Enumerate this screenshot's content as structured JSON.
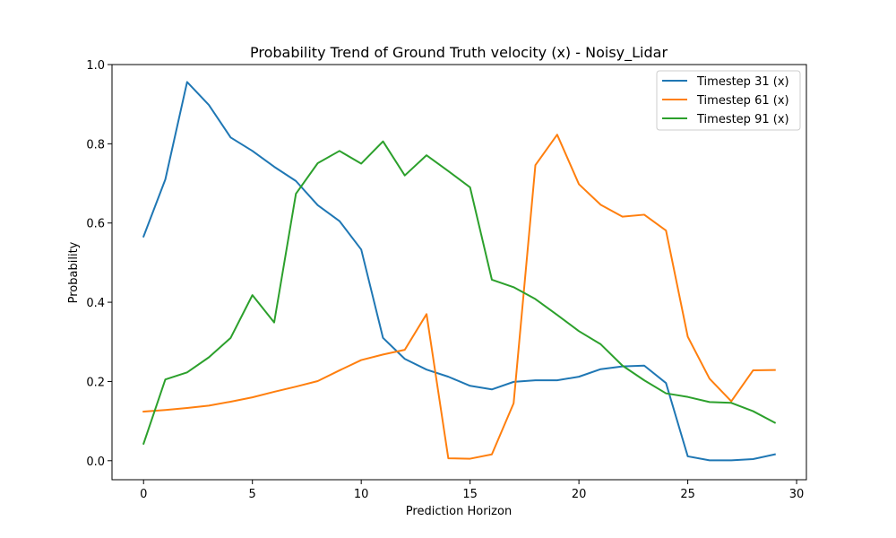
{
  "chart_data": {
    "type": "line",
    "title": "Probability Trend of Ground Truth velocity (x) - Noisy_Lidar",
    "xlabel": "Prediction Horizon",
    "ylabel": "Probability",
    "xlim": [
      -1.45,
      30.45
    ],
    "ylim": [
      -0.048,
      1.0
    ],
    "xticks": [
      0,
      5,
      10,
      15,
      20,
      25,
      30
    ],
    "yticks": [
      0.0,
      0.2,
      0.4,
      0.6,
      0.8,
      1.0
    ],
    "xtick_labels": [
      "0",
      "5",
      "10",
      "15",
      "20",
      "25",
      "30"
    ],
    "ytick_labels": [
      "0.0",
      "0.2",
      "0.4",
      "0.6",
      "0.8",
      "1.0"
    ],
    "grid": false,
    "legend_position": "top-right",
    "x": [
      0,
      1,
      2,
      3,
      4,
      5,
      6,
      7,
      8,
      9,
      10,
      11,
      12,
      13,
      14,
      15,
      16,
      17,
      18,
      19,
      20,
      21,
      22,
      23,
      24,
      25,
      26,
      27,
      28,
      29
    ],
    "series": [
      {
        "name": "Timestep 31 (x)",
        "color": "#1f77b4",
        "values": [
          0.566,
          0.71,
          0.956,
          0.898,
          0.816,
          0.782,
          0.742,
          0.706,
          0.645,
          0.605,
          0.533,
          0.31,
          0.257,
          0.23,
          0.212,
          0.189,
          0.18,
          0.199,
          0.203,
          0.203,
          0.212,
          0.231,
          0.238,
          0.24,
          0.196,
          0.011,
          0.001,
          0.001,
          0.004,
          0.016
        ]
      },
      {
        "name": "Timestep 61 (x)",
        "color": "#ff7f0e",
        "values": [
          0.124,
          0.128,
          0.133,
          0.139,
          0.149,
          0.16,
          0.174,
          0.187,
          0.201,
          0.228,
          0.254,
          0.268,
          0.28,
          0.37,
          0.006,
          0.005,
          0.016,
          0.145,
          0.746,
          0.823,
          0.698,
          0.646,
          0.616,
          0.621,
          0.581,
          0.313,
          0.207,
          0.15,
          0.228,
          0.229
        ]
      },
      {
        "name": "Timestep 91 (x)",
        "color": "#2ca02c",
        "values": [
          0.043,
          0.205,
          0.223,
          0.261,
          0.31,
          0.418,
          0.349,
          0.674,
          0.751,
          0.782,
          0.75,
          0.806,
          0.72,
          0.771,
          0.731,
          0.69,
          0.457,
          0.438,
          0.408,
          0.368,
          0.327,
          0.294,
          0.24,
          0.203,
          0.17,
          0.161,
          0.148,
          0.146,
          0.125,
          0.096
        ]
      }
    ]
  }
}
